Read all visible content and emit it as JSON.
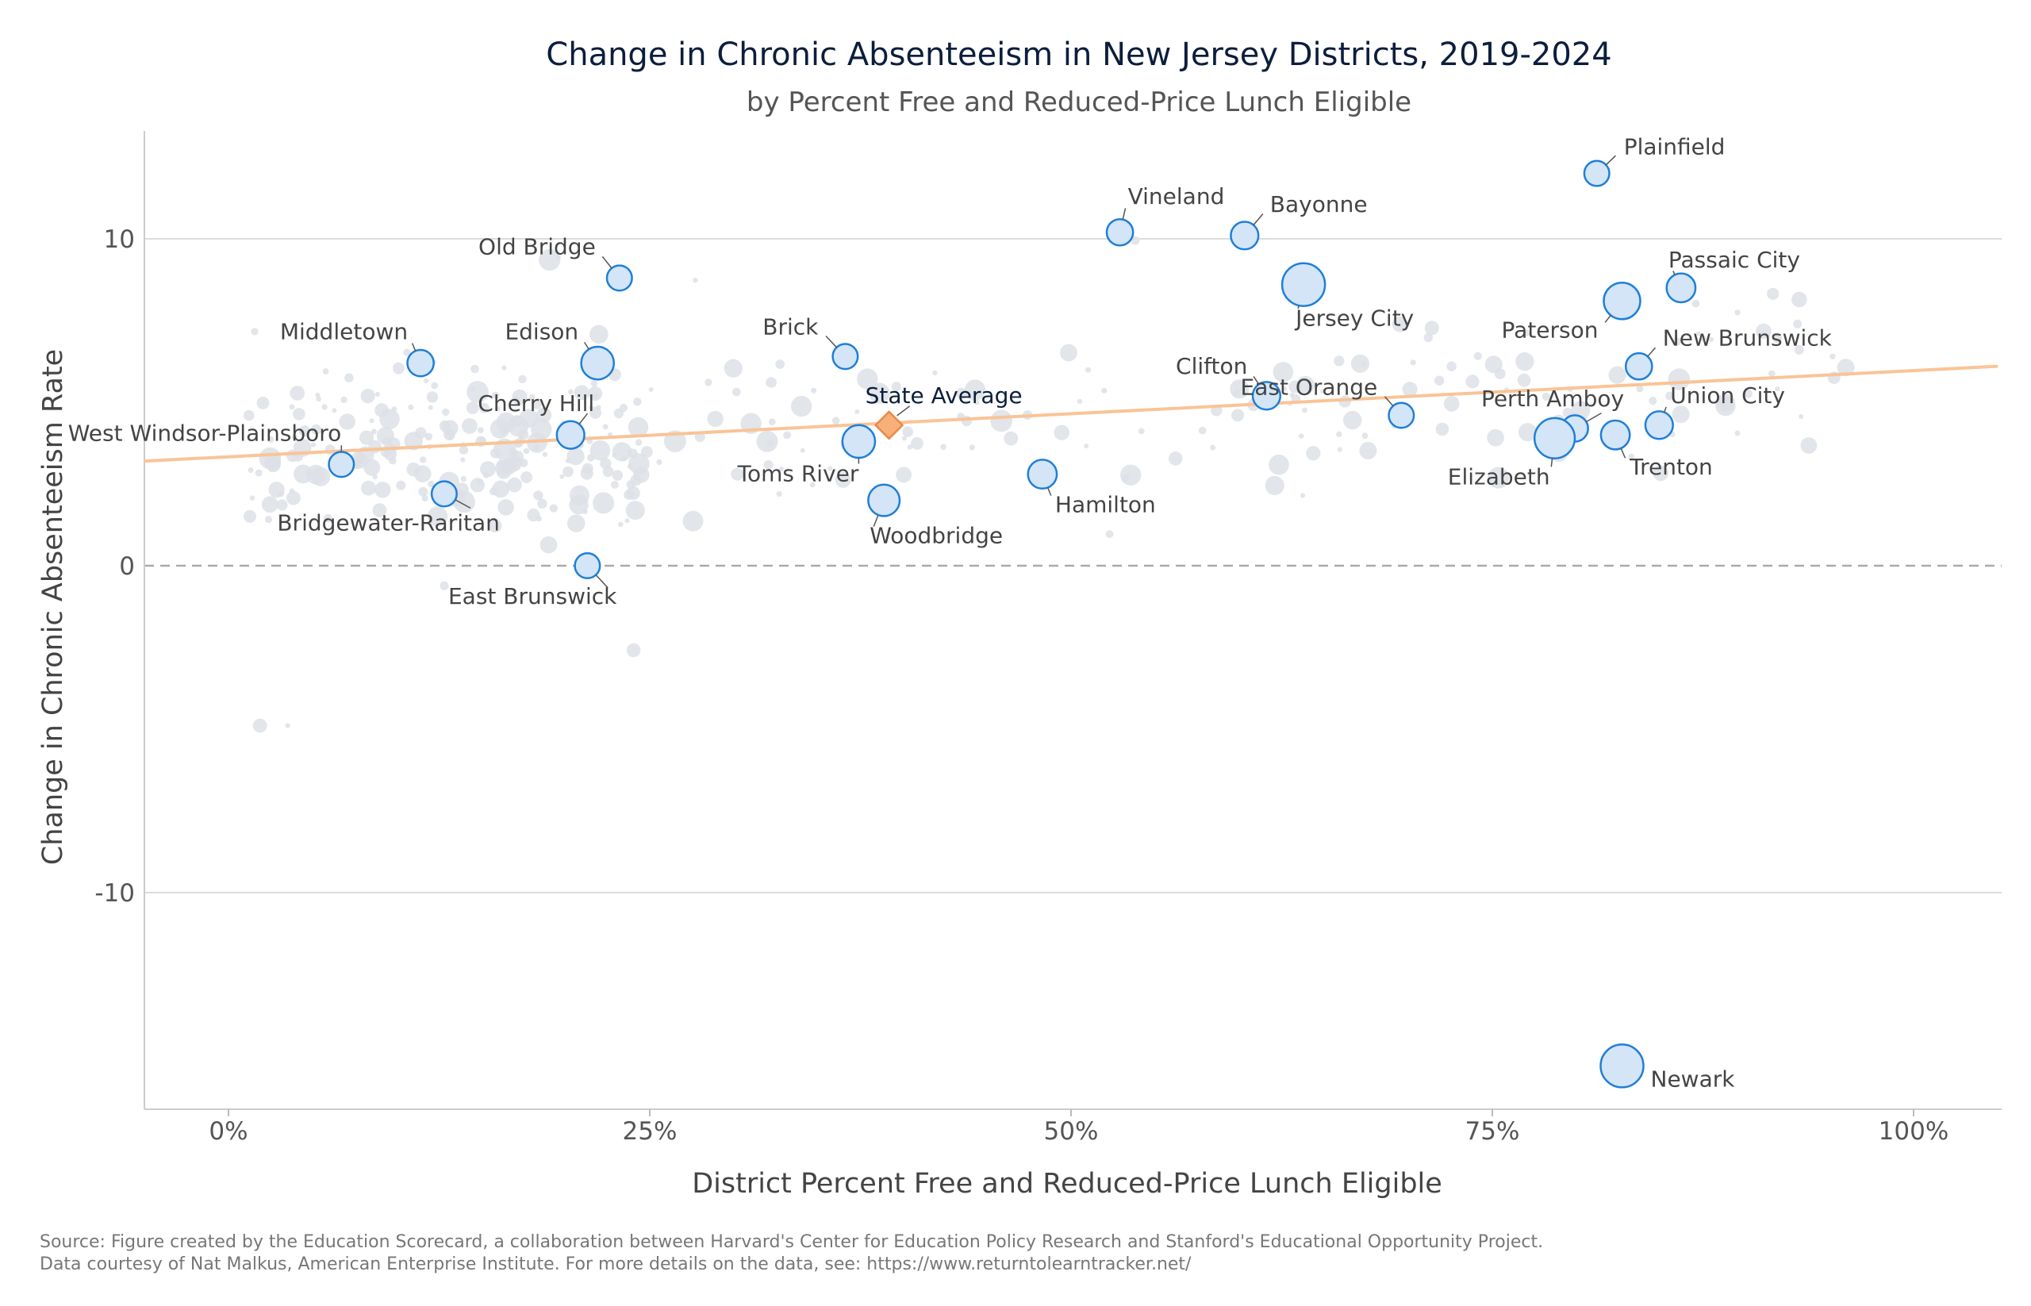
{
  "chart_data": {
    "type": "scatter",
    "title": "Change in Chronic Absenteeism in New Jersey Districts, 2019-2024",
    "subtitle": "by Percent Free and Reduced-Price Lunch Eligible",
    "xlabel": "District Percent Free and Reduced-Price Lunch Eligible",
    "ylabel": "Change in Chronic Absenteeism Rate",
    "xlim": [
      -0.05,
      1.05
    ],
    "ylim": [
      -16.7,
      13.3
    ],
    "x_ticks": [
      0,
      0.25,
      0.5,
      0.75,
      1.0
    ],
    "x_tick_labels": [
      "0%",
      "25%",
      "50%",
      "75%",
      "100%"
    ],
    "y_ticks": [
      10,
      0,
      -10
    ],
    "y_tick_labels": [
      "10",
      "0",
      "-10"
    ],
    "grid": "horizontal",
    "reference_line": {
      "y": 0,
      "style": "dashed"
    },
    "trend_line": {
      "x": [
        -0.05,
        1.05
      ],
      "y": [
        3.2,
        6.1
      ]
    },
    "colors": {
      "highlight_fill": "#d3e5f6",
      "highlight_stroke": "#1f7fd9",
      "background_point": "#dde1e6",
      "trend": "#f9c497",
      "state_average_fill": "#f7b079",
      "state_average_stroke": "#e8894a",
      "grid": "#dcdcdc",
      "title": "#0c1e3c"
    },
    "state_average": {
      "label": "State Average",
      "x": 0.392,
      "y": 4.3
    },
    "highlighted_districts": [
      {
        "name": "Plainfield",
        "x": 0.812,
        "y": 12.0,
        "size": 0.3
      },
      {
        "name": "Vineland",
        "x": 0.529,
        "y": 10.2,
        "size": 0.35
      },
      {
        "name": "Bayonne",
        "x": 0.603,
        "y": 10.1,
        "size": 0.4
      },
      {
        "name": "Old Bridge",
        "x": 0.232,
        "y": 8.8,
        "size": 0.3
      },
      {
        "name": "Jersey City",
        "x": 0.638,
        "y": 8.6,
        "size": 1.0
      },
      {
        "name": "Passaic City",
        "x": 0.862,
        "y": 8.5,
        "size": 0.45
      },
      {
        "name": "Paterson",
        "x": 0.827,
        "y": 8.1,
        "size": 0.75
      },
      {
        "name": "Middletown",
        "x": 0.114,
        "y": 6.2,
        "size": 0.35
      },
      {
        "name": "Edison",
        "x": 0.219,
        "y": 6.2,
        "size": 0.6
      },
      {
        "name": "Brick",
        "x": 0.366,
        "y": 6.4,
        "size": 0.3
      },
      {
        "name": "New Brunswick",
        "x": 0.837,
        "y": 6.1,
        "size": 0.35
      },
      {
        "name": "Clifton",
        "x": 0.616,
        "y": 5.2,
        "size": 0.4
      },
      {
        "name": "East Orange",
        "x": 0.696,
        "y": 4.6,
        "size": 0.3
      },
      {
        "name": "Perth Amboy",
        "x": 0.799,
        "y": 4.2,
        "size": 0.35
      },
      {
        "name": "Union City",
        "x": 0.849,
        "y": 4.3,
        "size": 0.4
      },
      {
        "name": "Trenton",
        "x": 0.823,
        "y": 4.0,
        "size": 0.45
      },
      {
        "name": "Elizabeth",
        "x": 0.787,
        "y": 3.9,
        "size": 0.9
      },
      {
        "name": "Cherry Hill",
        "x": 0.203,
        "y": 4.0,
        "size": 0.4
      },
      {
        "name": "Toms River",
        "x": 0.374,
        "y": 3.8,
        "size": 0.6
      },
      {
        "name": "West Windsor-Plainsboro",
        "x": 0.067,
        "y": 3.1,
        "size": 0.3
      },
      {
        "name": "Hamilton",
        "x": 0.483,
        "y": 2.8,
        "size": 0.45
      },
      {
        "name": "Bridgewater-Raritan",
        "x": 0.128,
        "y": 2.2,
        "size": 0.3
      },
      {
        "name": "Woodbridge",
        "x": 0.389,
        "y": 2.0,
        "size": 0.55
      },
      {
        "name": "East Brunswick",
        "x": 0.213,
        "y": 0.0,
        "size": 0.3
      },
      {
        "name": "Newark",
        "x": 0.827,
        "y": -15.3,
        "size": 1.0
      }
    ],
    "other_districts_note": "Hundreds of other districts plotted as light gray points of varying size"
  },
  "source_line_1": "Source: Figure created by the Education Scorecard, a collaboration between Harvard's Center for Education Policy Research and Stanford's Educational Opportunity Project.",
  "source_line_2": "Data courtesy of Nat Malkus, American Enterprise Institute. For more details on the data, see: https://www.returntolearntracker.net/"
}
